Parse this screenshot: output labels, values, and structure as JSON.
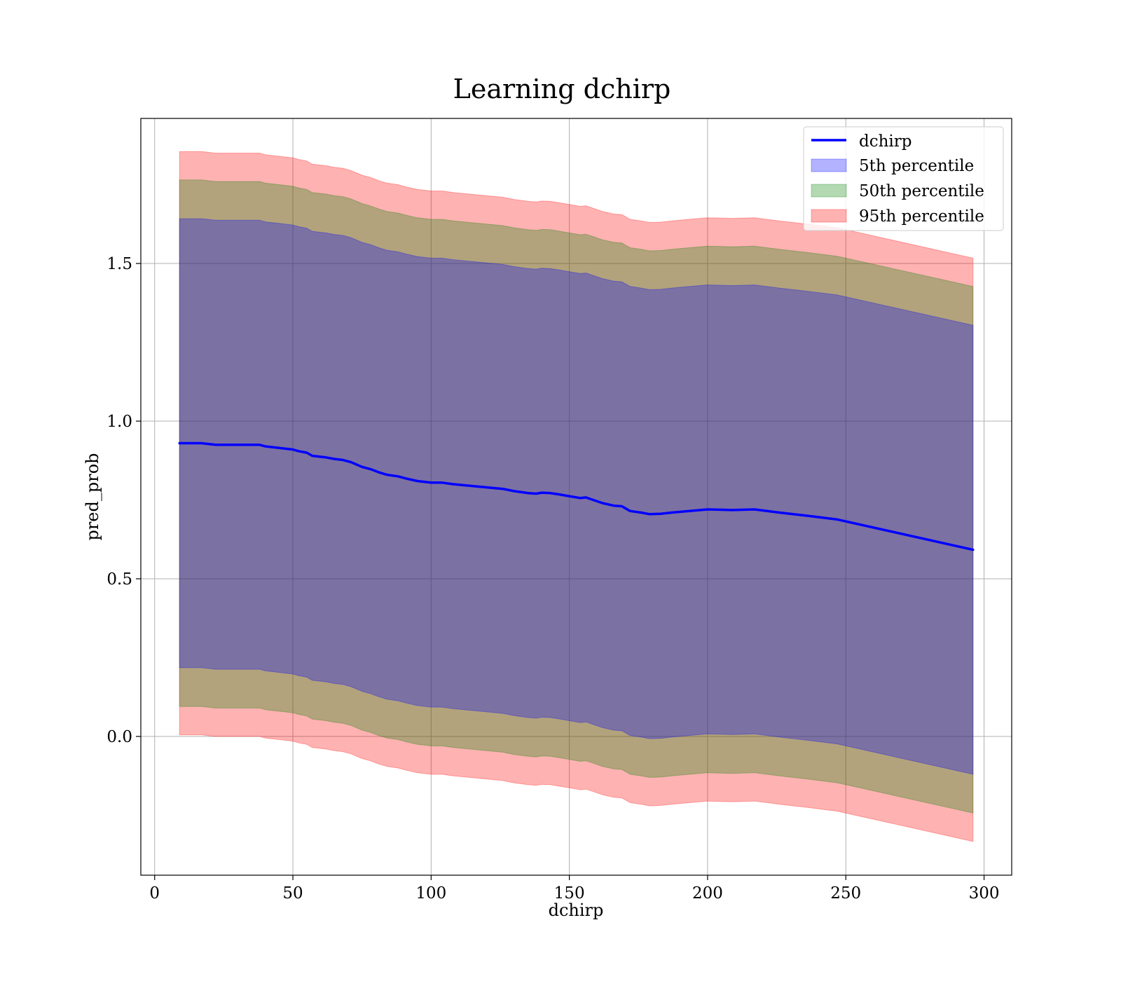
{
  "chart_data": {
    "type": "area",
    "title": "Learning dchirp",
    "xlabel": "dchirp",
    "ylabel": "pred_prob",
    "xlim": [
      -5,
      310
    ],
    "ylim": [
      -0.44,
      1.96
    ],
    "xticks": [
      0,
      50,
      100,
      150,
      200,
      250,
      300
    ],
    "yticks": [
      0.0,
      0.5,
      1.0,
      1.5
    ],
    "xtick_labels": [
      "0",
      "50",
      "100",
      "150",
      "200",
      "250",
      "300"
    ],
    "ytick_labels": [
      "0.0",
      "0.5",
      "1.0",
      "1.5"
    ],
    "grid": true,
    "legend_position": "top-right",
    "x": [
      9,
      17,
      22,
      30,
      38,
      40,
      45,
      50,
      52,
      55,
      57,
      62,
      65,
      68,
      71,
      75,
      78,
      81,
      84,
      88,
      91,
      95,
      100,
      104,
      108,
      114,
      120,
      126,
      130,
      135,
      138,
      140,
      143,
      146,
      150,
      154,
      156,
      158,
      162,
      166,
      169,
      172,
      176,
      179,
      183,
      187,
      192,
      200,
      209,
      217,
      226,
      236,
      247,
      296
    ],
    "mean": [
      0.93,
      0.93,
      0.925,
      0.925,
      0.925,
      0.92,
      0.915,
      0.91,
      0.905,
      0.9,
      0.89,
      0.885,
      0.88,
      0.877,
      0.87,
      0.855,
      0.848,
      0.838,
      0.83,
      0.825,
      0.818,
      0.81,
      0.805,
      0.805,
      0.8,
      0.795,
      0.79,
      0.785,
      0.778,
      0.772,
      0.77,
      0.773,
      0.772,
      0.768,
      0.762,
      0.756,
      0.758,
      0.752,
      0.74,
      0.732,
      0.73,
      0.715,
      0.71,
      0.705,
      0.706,
      0.71,
      0.714,
      0.72,
      0.718,
      0.72,
      0.71,
      0.7,
      0.688,
      0.592
    ],
    "bands": [
      {
        "name": "95th percentile",
        "color": "#ff0000",
        "opacity": 0.3,
        "half_width": 0.925
      },
      {
        "name": "50th percentile",
        "color": "#008000",
        "opacity": 0.3,
        "half_width": 0.835
      },
      {
        "name": "5th percentile",
        "color": "#0000ff",
        "opacity": 0.3,
        "half_width": 0.712
      }
    ],
    "series": [
      {
        "name": "dchirp",
        "color": "#0000ff"
      }
    ],
    "legend": [
      "dchirp",
      "5th percentile",
      "50th percentile",
      "95th percentile"
    ]
  }
}
